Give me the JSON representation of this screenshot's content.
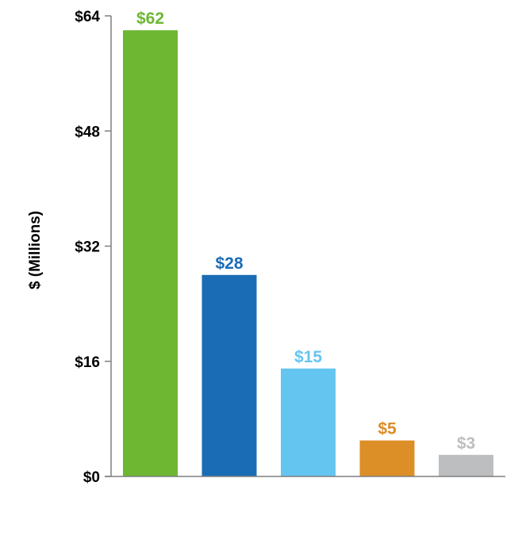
{
  "chart_data": {
    "type": "bar",
    "ylabel": "$ (Millions)",
    "ylim": [
      0,
      64
    ],
    "y_ticks": [
      {
        "value": 0,
        "label": "$0"
      },
      {
        "value": 16,
        "label": "$16"
      },
      {
        "value": 32,
        "label": "$32"
      },
      {
        "value": 48,
        "label": "$48"
      },
      {
        "value": 64,
        "label": "$64"
      }
    ],
    "bars": [
      {
        "value": 62,
        "label": "$62",
        "color": "#6db733"
      },
      {
        "value": 28,
        "label": "$28",
        "color": "#1a6db5"
      },
      {
        "value": 15,
        "label": "$15",
        "color": "#65c5f1"
      },
      {
        "value": 5,
        "label": "$5",
        "color": "#dc8e27"
      },
      {
        "value": 3,
        "label": "$3",
        "color": "#bdbebf"
      }
    ],
    "grid": false,
    "legend": "none"
  }
}
